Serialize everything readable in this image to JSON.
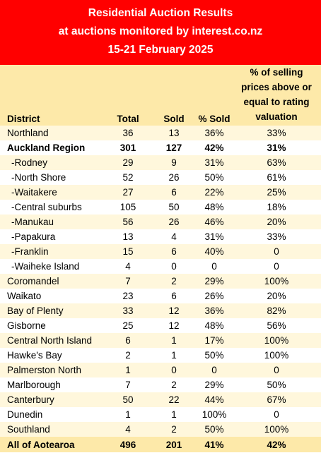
{
  "header": {
    "line1": "Residential Auction Results",
    "line2": "at auctions monitored by interest.co.nz",
    "line3": "15-21 February 2025",
    "background": "#ff0000"
  },
  "columns": {
    "district": "District",
    "total": "Total",
    "sold": "Sold",
    "pct_sold": "% Sold",
    "valuation_lines": [
      "% of selling",
      "prices above or",
      "equal to rating",
      "valuation"
    ]
  },
  "rows": [
    {
      "district": "Northland",
      "total": "36",
      "sold": "13",
      "pct_sold": "36%",
      "valuation": "33%",
      "bold": false,
      "sub": false
    },
    {
      "district": "Auckland Region",
      "total": "301",
      "sold": "127",
      "pct_sold": "42%",
      "valuation": "31%",
      "bold": true,
      "sub": false
    },
    {
      "district": "-Rodney",
      "total": "29",
      "sold": "9",
      "pct_sold": "31%",
      "valuation": "63%",
      "bold": false,
      "sub": true
    },
    {
      "district": "-North Shore",
      "total": "52",
      "sold": "26",
      "pct_sold": "50%",
      "valuation": "61%",
      "bold": false,
      "sub": true
    },
    {
      "district": "-Waitakere",
      "total": "27",
      "sold": "6",
      "pct_sold": "22%",
      "valuation": "25%",
      "bold": false,
      "sub": true
    },
    {
      "district": "-Central suburbs",
      "total": "105",
      "sold": "50",
      "pct_sold": "48%",
      "valuation": "18%",
      "bold": false,
      "sub": true
    },
    {
      "district": "-Manukau",
      "total": "56",
      "sold": "26",
      "pct_sold": "46%",
      "valuation": "20%",
      "bold": false,
      "sub": true
    },
    {
      "district": "-Papakura",
      "total": "13",
      "sold": "4",
      "pct_sold": "31%",
      "valuation": "33%",
      "bold": false,
      "sub": true
    },
    {
      "district": "-Franklin",
      "total": "15",
      "sold": "6",
      "pct_sold": "40%",
      "valuation": "0",
      "bold": false,
      "sub": true
    },
    {
      "district": "-Waiheke Island",
      "total": "4",
      "sold": "0",
      "pct_sold": "0",
      "valuation": "0",
      "bold": false,
      "sub": true
    },
    {
      "district": "Coromandel",
      "total": "7",
      "sold": "2",
      "pct_sold": "29%",
      "valuation": "100%",
      "bold": false,
      "sub": false
    },
    {
      "district": "Waikato",
      "total": "23",
      "sold": "6",
      "pct_sold": "26%",
      "valuation": "20%",
      "bold": false,
      "sub": false
    },
    {
      "district": "Bay of Plenty",
      "total": "33",
      "sold": "12",
      "pct_sold": "36%",
      "valuation": "82%",
      "bold": false,
      "sub": false
    },
    {
      "district": "Gisborne",
      "total": "25",
      "sold": "12",
      "pct_sold": "48%",
      "valuation": "56%",
      "bold": false,
      "sub": false
    },
    {
      "district": "Central North Island",
      "total": "6",
      "sold": "1",
      "pct_sold": "17%",
      "valuation": "100%",
      "bold": false,
      "sub": false
    },
    {
      "district": "Hawke's Bay",
      "total": "2",
      "sold": "1",
      "pct_sold": "50%",
      "valuation": "100%",
      "bold": false,
      "sub": false
    },
    {
      "district": "Palmerston North",
      "total": "1",
      "sold": "0",
      "pct_sold": "0",
      "valuation": "0",
      "bold": false,
      "sub": false
    },
    {
      "district": "Marlborough",
      "total": "7",
      "sold": "2",
      "pct_sold": "29%",
      "valuation": "50%",
      "bold": false,
      "sub": false
    },
    {
      "district": "Canterbury",
      "total": "50",
      "sold": "22",
      "pct_sold": "44%",
      "valuation": "67%",
      "bold": false,
      "sub": false
    },
    {
      "district": "Dunedin",
      "total": "1",
      "sold": "1",
      "pct_sold": "100%",
      "valuation": "0",
      "bold": false,
      "sub": false
    },
    {
      "district": "Southland",
      "total": "4",
      "sold": "2",
      "pct_sold": "50%",
      "valuation": "100%",
      "bold": false,
      "sub": false
    }
  ],
  "total_row": {
    "district": "All of Aotearoa",
    "total": "496",
    "sold": "201",
    "pct_sold": "41%",
    "valuation": "42%"
  },
  "colors": {
    "header_band": "#fde9a9",
    "row_odd": "#fff7dc",
    "row_even": "#ffffff"
  }
}
